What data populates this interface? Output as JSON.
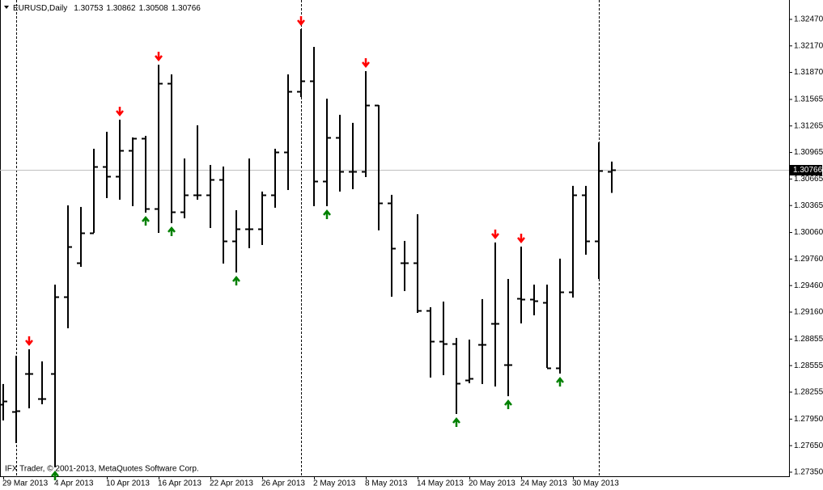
{
  "chart_data": {
    "type": "ohlc",
    "symbol": "EURUSD,Daily",
    "footer": "IFX Trader, © 2001-2013, MetaQuotes Software Corp.",
    "categories": [
      "29 Mar 2013",
      null,
      null,
      null,
      "4 Apr 2013",
      null,
      null,
      null,
      "10 Apr 2013",
      null,
      null,
      null,
      "16 Apr 2013",
      null,
      null,
      null,
      "22 Apr 2013",
      null,
      null,
      null,
      "26 Apr 2013",
      null,
      null,
      null,
      "2 May 2013",
      null,
      null,
      null,
      "8 May 2013",
      null,
      null,
      null,
      "14 May 2013",
      null,
      null,
      null,
      "20 May 2013",
      null,
      null,
      null,
      "24 May 2013",
      null,
      null,
      null,
      "30 May 2013",
      null,
      null,
      null
    ],
    "open": [
      1.28118,
      1.28036,
      1.28465,
      1.28182,
      1.28465,
      1.29334,
      1.29718,
      1.30056,
      1.30806,
      1.30696,
      1.30989,
      1.31126,
      1.30331,
      1.31748,
      1.30294,
      1.30486,
      1.30486,
      1.3066,
      1.29965,
      1.30102,
      1.30102,
      1.30486,
      1.30971,
      1.31656,
      1.31775,
      1.30641,
      1.31135,
      1.30751,
      1.30751,
      1.31501,
      1.30395,
      1.29718,
      1.29718,
      1.29179,
      1.28831,
      1.28804,
      1.28392,
      1.28795,
      1.29032,
      1.28566,
      1.29316,
      1.29307,
      1.2927,
      1.28529,
      1.29389,
      1.30486,
      1.29965,
      1.30753
    ],
    "high": [
      1.28347,
      1.28667,
      1.2874,
      1.28603,
      1.29471,
      1.30367,
      1.30349,
      1.31007,
      1.31199,
      1.31336,
      1.31135,
      1.31153,
      1.31958,
      1.31848,
      1.30897,
      1.31272,
      1.30824,
      1.30806,
      1.30312,
      1.30897,
      1.30523,
      1.31007,
      1.31848,
      1.3236,
      1.32159,
      1.31574,
      1.31391,
      1.313,
      1.31885,
      1.31501,
      1.30486,
      1.29965,
      1.30267,
      1.29215,
      1.29279,
      1.28868,
      1.28849,
      1.29307,
      1.29947,
      1.29535,
      1.29901,
      1.29471,
      1.29471,
      1.29764,
      1.30587,
      1.30587,
      1.3108,
      1.30862
    ],
    "low": [
      1.27935,
      1.27679,
      1.28072,
      1.28118,
      1.27405,
      1.28977,
      1.29672,
      1.30056,
      1.30449,
      1.30431,
      1.30358,
      1.30285,
      1.30056,
      1.30166,
      1.30221,
      1.30431,
      1.30111,
      1.29709,
      1.29608,
      1.29883,
      1.29919,
      1.3034,
      1.30541,
      1.31592,
      1.30358,
      1.30358,
      1.30523,
      1.3055,
      1.30687,
      1.30084,
      1.29334,
      1.29398,
      1.29151,
      1.2842,
      1.28447,
      1.28008,
      1.28356,
      1.28347,
      1.28319,
      1.28209,
      1.29032,
      1.29124,
      1.28529,
      1.28465,
      1.29325,
      1.29809,
      1.29535,
      1.30508
    ],
    "close": [
      1.28155,
      1.28045,
      1.28465,
      1.28182,
      1.29334,
      1.29901,
      1.30056,
      1.30806,
      1.30696,
      1.30989,
      1.31126,
      1.30331,
      1.31748,
      1.30294,
      1.30486,
      1.30486,
      1.3066,
      1.29965,
      1.30102,
      1.30102,
      1.30486,
      1.30971,
      1.31656,
      1.31775,
      1.30641,
      1.31135,
      1.30751,
      1.30751,
      1.31501,
      1.30395,
      1.29883,
      1.29718,
      1.29179,
      1.28831,
      1.28804,
      1.28356,
      1.28411,
      1.28795,
      1.29032,
      1.28566,
      1.29307,
      1.29288,
      1.28529,
      1.29389,
      1.30486,
      1.29965,
      1.3076,
      1.30766
    ],
    "color": "#000000",
    "fractals_down": [
      2,
      9,
      12,
      23,
      28,
      38,
      40
    ],
    "fractal_down_color": "#ff0000",
    "fractals_up": [
      4,
      11,
      13,
      18,
      25,
      35,
      39,
      43
    ],
    "fractal_up_color": "#008000",
    "period_separators": [
      1,
      23,
      46
    ],
    "ylim": [
      1.27304,
      1.32689
    ],
    "yticks": [
      {
        "value": 1.3247,
        "label": "1.32470"
      },
      {
        "value": 1.3217,
        "label": "1.32170"
      },
      {
        "value": 1.3187,
        "label": "1.31870"
      },
      1.31565,
      1.31265,
      1.30965,
      1.30665,
      1.30365,
      {
        "value": 1.3006,
        "label": "1.30060"
      },
      {
        "value": 1.2976,
        "label": "1.29760"
      },
      {
        "value": 1.2946,
        "label": "1.29460"
      },
      {
        "value": 1.2916,
        "label": "1.29160"
      },
      1.28855,
      1.28555,
      1.28255,
      {
        "value": 1.2795,
        "label": "1.27950"
      },
      {
        "value": 1.2765,
        "label": "1.27650"
      },
      {
        "value": 1.2735,
        "label": "1.27350"
      }
    ],
    "grid": false
  }
}
